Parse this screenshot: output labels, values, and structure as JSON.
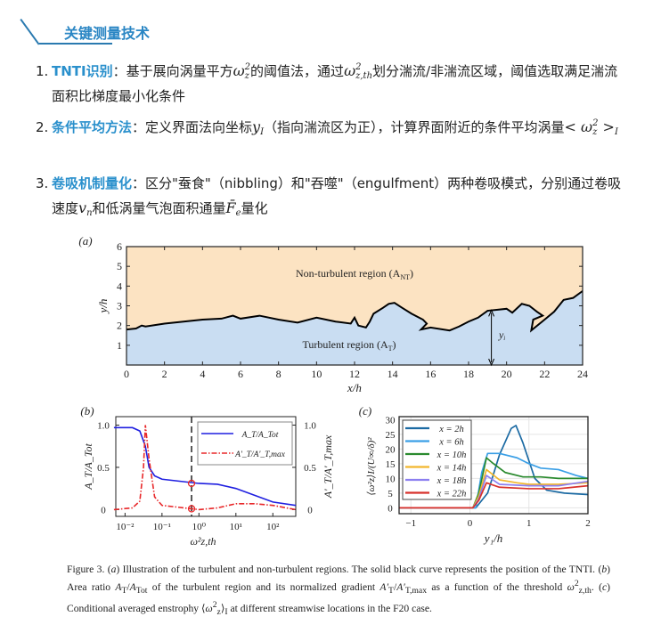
{
  "header": {
    "title": "关键测量技术",
    "accent": "#2a86c4"
  },
  "bullets": [
    {
      "num": "1.",
      "parts": [
        {
          "b": "TNTI识别"
        },
        {
          "t": "：基于展向涡量平方"
        },
        {
          "m": "ω",
          "sup": "2",
          "sub": "z"
        },
        {
          "t": "的阈值法，通过"
        },
        {
          "m": "ω",
          "sup": "2",
          "sub": "z,th"
        },
        {
          "t": "划分湍流/非湍流区域，阈值选取满足湍流面积比梯度最小化条件"
        }
      ]
    },
    {
      "num": "2.",
      "parts": [
        {
          "b": "条件平均方法"
        },
        {
          "t": "：定义界面法向坐标"
        },
        {
          "m": "y",
          "sub": "I"
        },
        {
          "t": "（指向湍流区为正），计算界面附近的条件平均涡量"
        },
        {
          "m": "< ω",
          "sup": "2",
          "sub": "z"
        },
        {
          "m": " >",
          "sub": "I"
        }
      ]
    },
    {
      "num": "3.",
      "parts": [
        {
          "b": "卷吸机制量化"
        },
        {
          "t": "：区分\"蚕食\"（nibbling）和\"吞噬\"（engulfment）两种卷吸模式，分别通过卷吸速度"
        },
        {
          "m": "v",
          "sub": "n"
        },
        {
          "t": "和低涡量气泡面积通量"
        },
        {
          "m": "F̄",
          "sub": "e"
        },
        {
          "t": "量化"
        }
      ]
    }
  ],
  "chart_data": [
    {
      "panel": "(a)",
      "type": "area",
      "xlabel": "x/h",
      "ylabel": "y/h",
      "xlim": [
        0,
        24
      ],
      "ylim": [
        0,
        6
      ],
      "xticks": [
        0,
        2,
        4,
        6,
        8,
        10,
        12,
        14,
        16,
        18,
        20,
        22,
        24
      ],
      "yticks": [
        1,
        2,
        3,
        4,
        5,
        6
      ],
      "interface": {
        "x": [
          0,
          0.5,
          0.8,
          1,
          2,
          3,
          4,
          5,
          5.6,
          6,
          7,
          8,
          9,
          10,
          11,
          11.8,
          12,
          12.2,
          12.6,
          12.8,
          13,
          13.5,
          13.8,
          14.1,
          14.5,
          15,
          15.6,
          15.8,
          15.5,
          16,
          17,
          17.5,
          18,
          18.5,
          19,
          20,
          20.3,
          20.8,
          21.2,
          21.6,
          21.9,
          21.4,
          21.3,
          22,
          22.5,
          23,
          23.5,
          24
        ],
        "y": [
          1.8,
          1.85,
          2.0,
          1.95,
          2.1,
          2.2,
          2.3,
          2.35,
          2.5,
          2.35,
          2.5,
          2.3,
          2.15,
          2.4,
          2.2,
          2.1,
          2.4,
          2.0,
          1.9,
          2.2,
          2.6,
          2.9,
          3.1,
          3.15,
          2.9,
          2.6,
          2.3,
          2.1,
          1.8,
          1.9,
          1.75,
          1.95,
          2.2,
          2.4,
          2.75,
          2.85,
          2.65,
          3.1,
          3.0,
          2.7,
          2.5,
          2.3,
          1.75,
          2.3,
          2.7,
          3.3,
          3.4,
          3.75
        ]
      },
      "labels": {
        "non_turbulent": "Non-turbulent region (A",
        "non_turbulent_sub": "NT",
        "turbulent": "Turbulent region  (A",
        "turbulent_sub": "T",
        "yi": "y",
        "yi_sub": "i"
      },
      "yi_x": 19.2,
      "colors": {
        "turbulent": "#c9ddf2",
        "non_turbulent": "#fce3c2"
      }
    },
    {
      "panel": "(b)",
      "type": "line",
      "xscale": "log",
      "xlabel": "ω²z,th",
      "ylabel_left": "A_T/A_Tot",
      "ylabel_right": "A'_T/A'_T,max",
      "xtick_labels": [
        "10⁻²",
        "10⁻¹",
        "10⁰",
        "10¹",
        "10²"
      ],
      "xtick_exp": [
        -2,
        -1,
        0,
        1,
        2
      ],
      "yticks": [
        "0",
        "0.5",
        "1.0"
      ],
      "xlim_log10": [
        -2.25,
        2.62
      ],
      "ylim": [
        -0.08,
        1.1
      ],
      "threshold_log10": -0.2,
      "series": [
        {
          "name": "A_T/A_Tot",
          "color": "#1f1fe0",
          "dash": "",
          "log10x": [
            -2.3,
            -1.8,
            -1.6,
            -1.45,
            -1.35,
            -1.2,
            -1,
            0,
            0.5,
            1,
            1.5,
            2,
            2.62
          ],
          "y": [
            0.97,
            0.97,
            0.93,
            0.75,
            0.5,
            0.4,
            0.36,
            0.31,
            0.3,
            0.25,
            0.17,
            0.09,
            0.05
          ]
        },
        {
          "name": "A'_T/A'_T,max",
          "color": "#e8282a",
          "dash": "6,2,1.5,2",
          "log10x": [
            -2.3,
            -1.8,
            -1.6,
            -1.5,
            -1.45,
            -1.35,
            -1.2,
            -1,
            0,
            0.5,
            1,
            1.5,
            2,
            2.62
          ],
          "y": [
            0,
            0.02,
            0.1,
            0.5,
            1.0,
            0.6,
            0.15,
            0.05,
            0,
            0.02,
            0.07,
            0.07,
            0.05,
            0
          ]
        }
      ]
    },
    {
      "panel": "(c)",
      "type": "line",
      "xlabel": "y₁/h",
      "ylabel": "⟨ω²z⟩I/(U∞/δ)²",
      "xlim": [
        -1.2,
        2
      ],
      "ylim": [
        -2,
        31
      ],
      "xticks": [
        -1,
        0,
        1,
        2
      ],
      "xtick_labels": [
        "−1",
        "0",
        "1",
        "2"
      ],
      "yticks": [
        0,
        5,
        10,
        15,
        20,
        25,
        30
      ],
      "series": [
        {
          "name": "x = 2h",
          "color": "#1b6aa3",
          "x": [
            -1.2,
            0.1,
            0.3,
            0.5,
            0.7,
            0.78,
            0.9,
            1.1,
            1.3,
            1.6,
            2
          ],
          "y": [
            0,
            0,
            5,
            18,
            27,
            28,
            22,
            10,
            6,
            5,
            4.5
          ]
        },
        {
          "name": "x = 6h",
          "color": "#3a9fe6",
          "x": [
            -1.2,
            0.1,
            0.2,
            0.3,
            0.5,
            0.8,
            1.0,
            1.2,
            1.5,
            1.8,
            2
          ],
          "y": [
            0,
            0,
            12,
            18.5,
            18.5,
            17,
            15,
            13.5,
            13,
            11,
            10
          ]
        },
        {
          "name": "x = 10h",
          "color": "#2a8a2e",
          "x": [
            -1.2,
            0.05,
            0.15,
            0.28,
            0.4,
            0.6,
            0.9,
            1.2,
            1.5,
            2
          ],
          "y": [
            0,
            0,
            5,
            17,
            15,
            12,
            10.5,
            10.5,
            10,
            10
          ]
        },
        {
          "name": "x = 14h",
          "color": "#f2b62c",
          "x": [
            -1.2,
            0.05,
            0.15,
            0.28,
            0.5,
            0.8,
            1,
            1.5,
            2
          ],
          "y": [
            0,
            0,
            4,
            13,
            9.5,
            8.5,
            8,
            8,
            8.5
          ]
        },
        {
          "name": "x = 18h",
          "color": "#8c7ff0",
          "x": [
            -1.2,
            0.05,
            0.15,
            0.28,
            0.5,
            1,
            1.5,
            2
          ],
          "y": [
            0,
            0,
            3,
            11,
            8,
            7.5,
            7.5,
            9
          ]
        },
        {
          "name": "x = 22h",
          "color": "#d8322c",
          "x": [
            -1.2,
            0.05,
            0.15,
            0.28,
            0.5,
            1,
            1.5,
            2
          ],
          "y": [
            0,
            0,
            2.5,
            8.5,
            7,
            6.5,
            6.5,
            7.5
          ]
        }
      ]
    }
  ],
  "caption": [
    {
      "t": "Figure 3. ("
    },
    {
      "i": "a"
    },
    {
      "t": ") Illustration of the turbulent and non-turbulent regions. The solid black curve represents the position of the TNTI. ("
    },
    {
      "i": "b"
    },
    {
      "t": ") Area ratio "
    },
    {
      "i": "A"
    },
    {
      "sub": "T"
    },
    {
      "t": "/"
    },
    {
      "i": "A"
    },
    {
      "sub": "Tot"
    },
    {
      "t": " of the turbulent region and its normalized gradient "
    },
    {
      "i": "A′"
    },
    {
      "sub": "T"
    },
    {
      "t": "/"
    },
    {
      "i": "A′"
    },
    {
      "sub": "T,max"
    },
    {
      "t": " as a function of the threshold "
    },
    {
      "i": "ω"
    },
    {
      "sup": "2"
    },
    {
      "sub": "z,th"
    },
    {
      "t": ". ("
    },
    {
      "i": "c"
    },
    {
      "t": ") Conditional averaged enstrophy ⟨"
    },
    {
      "i": "ω"
    },
    {
      "sup": "2"
    },
    {
      "sub": "z"
    },
    {
      "t": "⟩"
    },
    {
      "sub": "I"
    },
    {
      "t": " at different streamwise locations in the F20 case."
    }
  ]
}
